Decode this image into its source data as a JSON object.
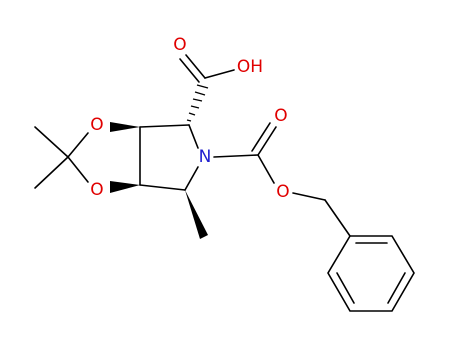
{
  "atoms": [
    {
      "label": "O"
    },
    {
      "label": "OH"
    },
    {
      "label": "O"
    },
    {
      "label": "O"
    },
    {
      "label": "N"
    },
    {
      "label": "O"
    },
    {
      "label": "O"
    }
  ]
}
